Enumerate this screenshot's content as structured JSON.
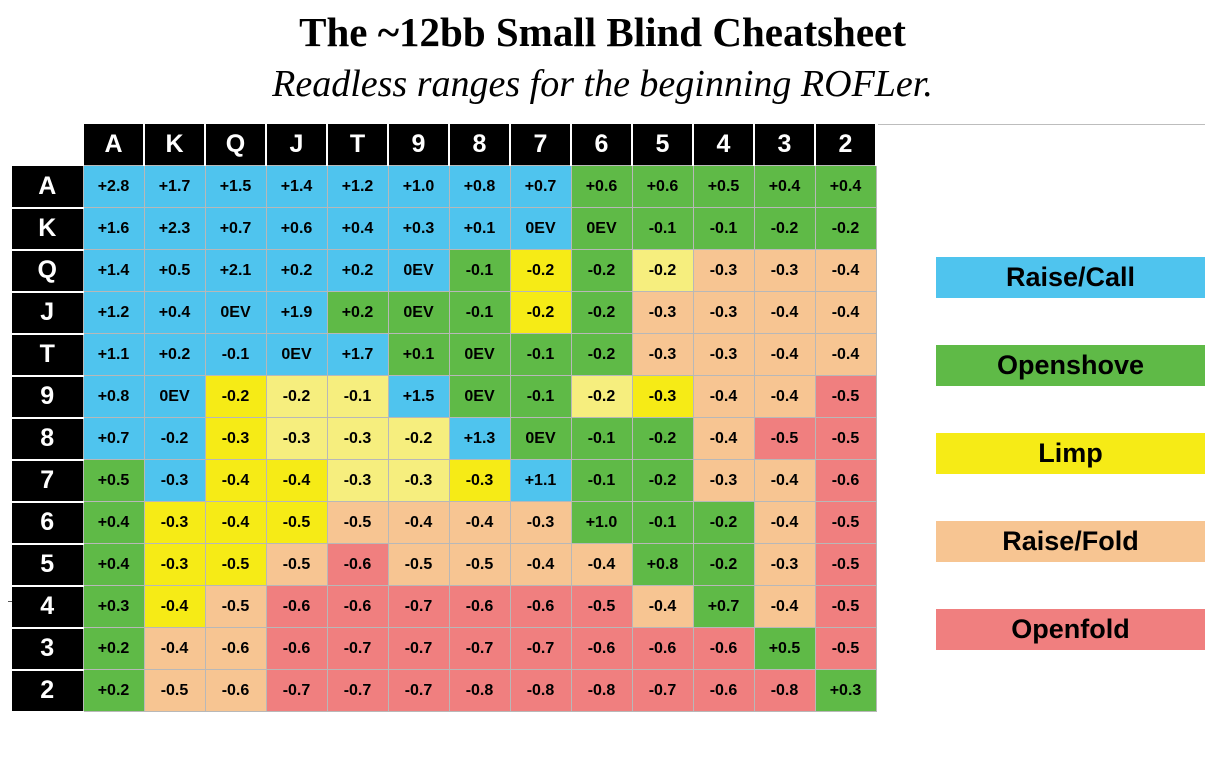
{
  "title": "The ~12bb Small Blind Cheatsheet",
  "subtitle": "Readless ranges for the beginning ROFLer.",
  "colors": {
    "raise_call": "#4fc4ee",
    "openshove": "#5fba47",
    "limp": "#f6eb16",
    "limp_light": "#f6ee7e",
    "raise_fold": "#f7c592",
    "openfold": "#f07f7f"
  },
  "legend": [
    {
      "label": "Raise/Call",
      "color": "#4fc4ee"
    },
    {
      "label": "Openshove",
      "color": "#5fba47"
    },
    {
      "label": "Limp",
      "color": "#f6eb16"
    },
    {
      "label": "Raise/Fold",
      "color": "#f7c592"
    },
    {
      "label": "Openfold",
      "color": "#f07f7f"
    }
  ],
  "chart_data": {
    "type": "heatmap",
    "title": "The ~12bb Small Blind Cheatsheet",
    "subtitle": "Readless ranges for the beginning ROFLer.",
    "columns": [
      "A",
      "K",
      "Q",
      "J",
      "T",
      "9",
      "8",
      "7",
      "6",
      "5",
      "4",
      "3",
      "2"
    ],
    "rows": [
      "A",
      "K",
      "Q",
      "J",
      "T",
      "9",
      "8",
      "7",
      "6",
      "5",
      "4",
      "3",
      "2"
    ],
    "values": [
      [
        "+2.8",
        "+1.7",
        "+1.5",
        "+1.4",
        "+1.2",
        "+1.0",
        "+0.8",
        "+0.7",
        "+0.6",
        "+0.6",
        "+0.5",
        "+0.4",
        "+0.4"
      ],
      [
        "+1.6",
        "+2.3",
        "+0.7",
        "+0.6",
        "+0.4",
        "+0.3",
        "+0.1",
        "0EV",
        "0EV",
        "-0.1",
        "-0.1",
        "-0.2",
        "-0.2"
      ],
      [
        "+1.4",
        "+0.5",
        "+2.1",
        "+0.2",
        "+0.2",
        "0EV",
        "-0.1",
        "-0.2",
        "-0.2",
        "-0.2",
        "-0.3",
        "-0.3",
        "-0.4"
      ],
      [
        "+1.2",
        "+0.4",
        "0EV",
        "+1.9",
        "+0.2",
        "0EV",
        "-0.1",
        "-0.2",
        "-0.2",
        "-0.3",
        "-0.3",
        "-0.4",
        "-0.4"
      ],
      [
        "+1.1",
        "+0.2",
        "-0.1",
        "0EV",
        "+1.7",
        "+0.1",
        "0EV",
        "-0.1",
        "-0.2",
        "-0.3",
        "-0.3",
        "-0.4",
        "-0.4"
      ],
      [
        "+0.8",
        "0EV",
        "-0.2",
        "-0.2",
        "-0.1",
        "+1.5",
        "0EV",
        "-0.1",
        "-0.2",
        "-0.3",
        "-0.4",
        "-0.4",
        "-0.5"
      ],
      [
        "+0.7",
        "-0.2",
        "-0.3",
        "-0.3",
        "-0.3",
        "-0.2",
        "+1.3",
        "0EV",
        "-0.1",
        "-0.2",
        "-0.4",
        "-0.5",
        "-0.5"
      ],
      [
        "+0.5",
        "-0.3",
        "-0.4",
        "-0.4",
        "-0.3",
        "-0.3",
        "-0.3",
        "+1.1",
        "-0.1",
        "-0.2",
        "-0.3",
        "-0.4",
        "-0.6"
      ],
      [
        "+0.4",
        "-0.3",
        "-0.4",
        "-0.5",
        "-0.5",
        "-0.4",
        "-0.4",
        "-0.3",
        "+1.0",
        "-0.1",
        "-0.2",
        "-0.4",
        "-0.5"
      ],
      [
        "+0.4",
        "-0.3",
        "-0.5",
        "-0.5",
        "-0.6",
        "-0.5",
        "-0.5",
        "-0.4",
        "-0.4",
        "+0.8",
        "-0.2",
        "-0.3",
        "-0.5"
      ],
      [
        "+0.3",
        "-0.4",
        "-0.5",
        "-0.6",
        "-0.6",
        "-0.7",
        "-0.6",
        "-0.6",
        "-0.5",
        "-0.4",
        "+0.7",
        "-0.4",
        "-0.5"
      ],
      [
        "+0.2",
        "-0.4",
        "-0.6",
        "-0.6",
        "-0.7",
        "-0.7",
        "-0.7",
        "-0.7",
        "-0.6",
        "-0.6",
        "-0.6",
        "+0.5",
        "-0.5"
      ],
      [
        "+0.2",
        "-0.5",
        "-0.6",
        "-0.7",
        "-0.7",
        "-0.7",
        "-0.8",
        "-0.8",
        "-0.8",
        "-0.7",
        "-0.6",
        "-0.8",
        "+0.3"
      ]
    ],
    "actions": [
      [
        "rc",
        "rc",
        "rc",
        "rc",
        "rc",
        "rc",
        "rc",
        "rc",
        "os",
        "os",
        "os",
        "os",
        "os"
      ],
      [
        "rc",
        "rc",
        "rc",
        "rc",
        "rc",
        "rc",
        "rc",
        "rc",
        "os",
        "os",
        "os",
        "os",
        "os"
      ],
      [
        "rc",
        "rc",
        "rc",
        "rc",
        "rc",
        "rc",
        "os",
        "lp",
        "os",
        "ll",
        "rf",
        "rf",
        "rf"
      ],
      [
        "rc",
        "rc",
        "rc",
        "rc",
        "os",
        "os",
        "os",
        "lp",
        "os",
        "rf",
        "rf",
        "rf",
        "rf"
      ],
      [
        "rc",
        "rc",
        "rc",
        "rc",
        "rc",
        "os",
        "os",
        "os",
        "os",
        "rf",
        "rf",
        "rf",
        "rf"
      ],
      [
        "rc",
        "rc",
        "lp",
        "ll",
        "ll",
        "rc",
        "os",
        "os",
        "ll",
        "lp",
        "rf",
        "rf",
        "of"
      ],
      [
        "rc",
        "rc",
        "lp",
        "ll",
        "ll",
        "ll",
        "rc",
        "os",
        "os",
        "os",
        "rf",
        "of",
        "of"
      ],
      [
        "os",
        "rc",
        "lp",
        "lp",
        "ll",
        "ll",
        "lp",
        "rc",
        "os",
        "os",
        "rf",
        "rf",
        "of"
      ],
      [
        "os",
        "lp",
        "lp",
        "lp",
        "rf",
        "rf",
        "rf",
        "rf",
        "os",
        "os",
        "os",
        "rf",
        "of"
      ],
      [
        "os",
        "lp",
        "lp",
        "rf",
        "of",
        "rf",
        "rf",
        "rf",
        "rf",
        "os",
        "os",
        "rf",
        "of"
      ],
      [
        "os",
        "lp",
        "rf",
        "of",
        "of",
        "of",
        "of",
        "of",
        "of",
        "rf",
        "os",
        "rf",
        "of"
      ],
      [
        "os",
        "rf",
        "rf",
        "of",
        "of",
        "of",
        "of",
        "of",
        "of",
        "of",
        "of",
        "os",
        "of"
      ],
      [
        "os",
        "rf",
        "rf",
        "of",
        "of",
        "of",
        "of",
        "of",
        "of",
        "of",
        "of",
        "of",
        "os"
      ]
    ],
    "action_legend": {
      "rc": "Raise/Call",
      "os": "Openshove",
      "lp": "Limp",
      "ll": "Limp",
      "rf": "Raise/Fold",
      "of": "Openfold"
    }
  }
}
